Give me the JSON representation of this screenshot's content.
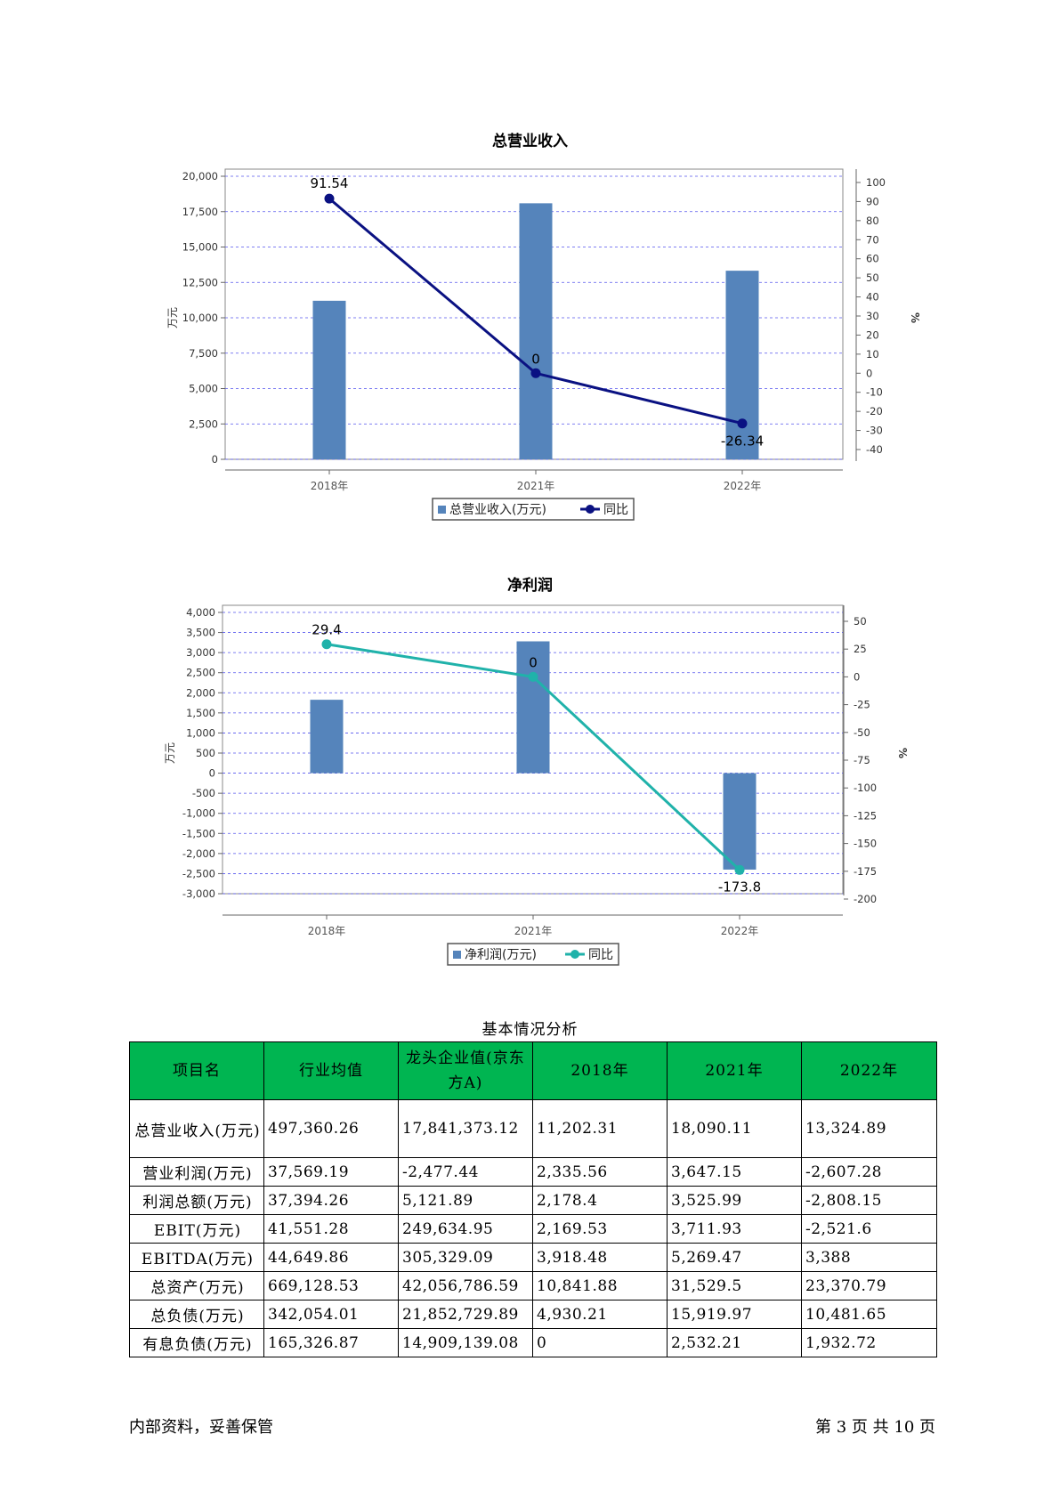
{
  "charts": [
    {
      "title": "总营业收入",
      "left_axis_label": "万元",
      "right_axis_label": "%",
      "legend": {
        "bar": "总营业收入(万元)",
        "line": "同比"
      }
    },
    {
      "title": "净利润",
      "left_axis_label": "万元",
      "right_axis_label": "%",
      "legend": {
        "bar": "净利润(万元)",
        "line": "同比"
      }
    }
  ],
  "chart_data": [
    {
      "type": "bar",
      "title": "总营业收入",
      "categories": [
        "2018年",
        "2021年",
        "2022年"
      ],
      "series": [
        {
          "name": "总营业收入(万元)",
          "type": "bar",
          "axis": "left",
          "values": [
            11202.31,
            18090.11,
            13324.89
          ]
        },
        {
          "name": "同比",
          "type": "line",
          "axis": "right",
          "values": [
            91.54,
            0,
            -26.34
          ]
        }
      ],
      "ylabel": "万元",
      "y2label": "%",
      "ylim": [
        0,
        20000
      ],
      "yticks": [
        0,
        2500,
        5000,
        7500,
        10000,
        12500,
        15000,
        17500,
        20000
      ],
      "y2lim": [
        -40,
        100
      ],
      "y2ticks": [
        -40,
        -30,
        -20,
        -10,
        0,
        10,
        20,
        30,
        40,
        50,
        60,
        70,
        80,
        90,
        100
      ],
      "grid": true,
      "legend_position": "bottom",
      "point_labels": [
        "91.54",
        "0",
        "-26.34"
      ],
      "colors": {
        "bar": "#5584bb",
        "line": "#0a1182"
      }
    },
    {
      "type": "bar",
      "title": "净利润",
      "categories": [
        "2018年",
        "2021年",
        "2022年"
      ],
      "series": [
        {
          "name": "净利润(万元)",
          "type": "bar",
          "axis": "left",
          "values": [
            1826.21,
            3280,
            -2400
          ]
        },
        {
          "name": "同比",
          "type": "line",
          "axis": "right",
          "values": [
            29.4,
            0,
            -173.8
          ]
        }
      ],
      "ylabel": "万元",
      "y2label": "%",
      "ylim": [
        -3000,
        4000
      ],
      "yticks": [
        -3000,
        -2500,
        -2000,
        -1500,
        -1000,
        -500,
        0,
        500,
        1000,
        1500,
        2000,
        2500,
        3000,
        3500,
        4000
      ],
      "y2lim": [
        -200,
        50
      ],
      "y2ticks": [
        -200,
        -175,
        -150,
        -125,
        -100,
        -75,
        -50,
        -25,
        0,
        25,
        50
      ],
      "grid": true,
      "legend_position": "bottom",
      "point_labels": [
        "29.4",
        "0",
        "-173.8"
      ],
      "colors": {
        "bar": "#5584bb",
        "line": "#20b2aa"
      }
    }
  ],
  "table": {
    "caption": "基本情况分析",
    "headers": [
      "项目名",
      "行业均值",
      "龙头企业值(京东方A)",
      "2018年",
      "2021年",
      "2022年"
    ],
    "rows": [
      [
        "总营业收入(万元)",
        "497,360.26",
        "17,841,373.12",
        "11,202.31",
        "18,090.11",
        "13,324.89"
      ],
      [
        "营业利润(万元)",
        "37,569.19",
        "-2,477.44",
        "2,335.56",
        "3,647.15",
        "-2,607.28"
      ],
      [
        "利润总额(万元)",
        "37,394.26",
        "5,121.89",
        "2,178.4",
        "3,525.99",
        "-2,808.15"
      ],
      [
        "EBIT(万元)",
        "41,551.28",
        "249,634.95",
        "2,169.53",
        "3,711.93",
        "-2,521.6"
      ],
      [
        "EBITDA(万元)",
        "44,649.86",
        "305,329.09",
        "3,918.48",
        "5,269.47",
        "3,388"
      ],
      [
        "总资产(万元)",
        "669,128.53",
        "42,056,786.59",
        "10,841.88",
        "31,529.5",
        "23,370.79"
      ],
      [
        "总负债(万元)",
        "342,054.01",
        "21,852,729.89",
        "4,930.21",
        "15,919.97",
        "10,481.65"
      ],
      [
        "有息负债(万元)",
        "165,326.87",
        "14,909,139.08",
        "0",
        "2,532.21",
        "1,932.72"
      ]
    ]
  },
  "footer": {
    "left": "内部资料，妥善保管",
    "right": "第 3 页  共 10 页"
  }
}
